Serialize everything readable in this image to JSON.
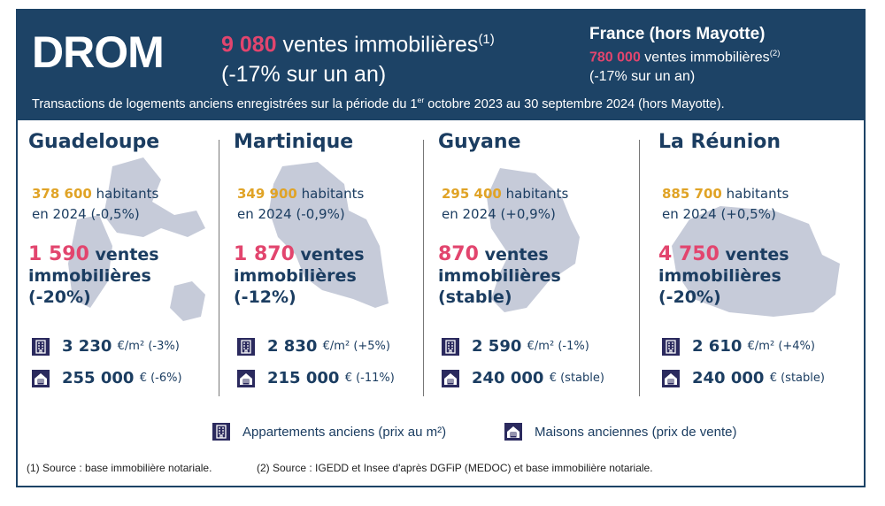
{
  "header": {
    "title": "DROM",
    "total_sales": "9 080",
    "total_sales_label": "ventes immobilières",
    "total_note": "(1)",
    "total_change": "(-17% sur un an)",
    "france_title": "France (hors Mayotte)",
    "france_sales": "780 000",
    "france_sales_label": "ventes immobilières",
    "france_note": "(2)",
    "france_change": "(-17% sur un an)",
    "period_a": "Transactions de logements anciens enregistrées sur la période du 1",
    "period_sup": "er",
    "period_b": " octobre 2023 au 30 septembre 2024 (hors Mayotte)."
  },
  "regions": [
    {
      "name": "Guadeloupe",
      "population": "378 600",
      "pop_label": "habitants",
      "pop_change": "en 2024 (-0,5%)",
      "sales": "1 590",
      "sales_l1": "ventes",
      "sales_l2": "immobilières",
      "sales_change": "(-20%)",
      "apt_price": "3 230",
      "apt_unit": "€/m² (-3%)",
      "house_price": "255 000",
      "house_unit": "€ (-6%)"
    },
    {
      "name": "Martinique",
      "population": "349 900",
      "pop_label": "habitants",
      "pop_change": "en 2024 (-0,9%)",
      "sales": "1 870",
      "sales_l1": "ventes",
      "sales_l2": "immobilières",
      "sales_change": "(-12%)",
      "apt_price": "2 830",
      "apt_unit": "€/m² (+5%)",
      "house_price": "215 000",
      "house_unit": "€ (-11%)"
    },
    {
      "name": "Guyane",
      "population": "295 400",
      "pop_label": "habitants",
      "pop_change": "en 2024 (+0,9%)",
      "sales": "870",
      "sales_l1": "ventes",
      "sales_l2": "immobilières",
      "sales_change": "(stable)",
      "apt_price": "2 590",
      "apt_unit": "€/m² (-1%)",
      "house_price": "240 000",
      "house_unit": "€ (stable)"
    },
    {
      "name": "La Réunion",
      "population": "885 700",
      "pop_label": "habitants",
      "pop_change": "en 2024 (+0,5%)",
      "sales": "4 750",
      "sales_l1": "ventes",
      "sales_l2": "immobilières",
      "sales_change": "(-20%)",
      "apt_price": "2 610",
      "apt_unit": "€/m² (+4%)",
      "house_price": "240 000",
      "house_unit": "€ (stable)"
    }
  ],
  "legend": {
    "apartments": "Appartements anciens (prix au m²)",
    "houses": "Maisons anciennes (prix de vente)"
  },
  "footnotes": {
    "note1": "(1) Source : base immobilière notariale.",
    "note2": "(2) Source : IGEDD et Insee d'après DGFiP (MEDOC) et base immobilière notariale."
  },
  "colors": {
    "navy": "#1d4366",
    "pink": "#e2456e",
    "orange": "#e0a326",
    "map": "#c6cbd9",
    "icon": "#2b2a5e"
  }
}
